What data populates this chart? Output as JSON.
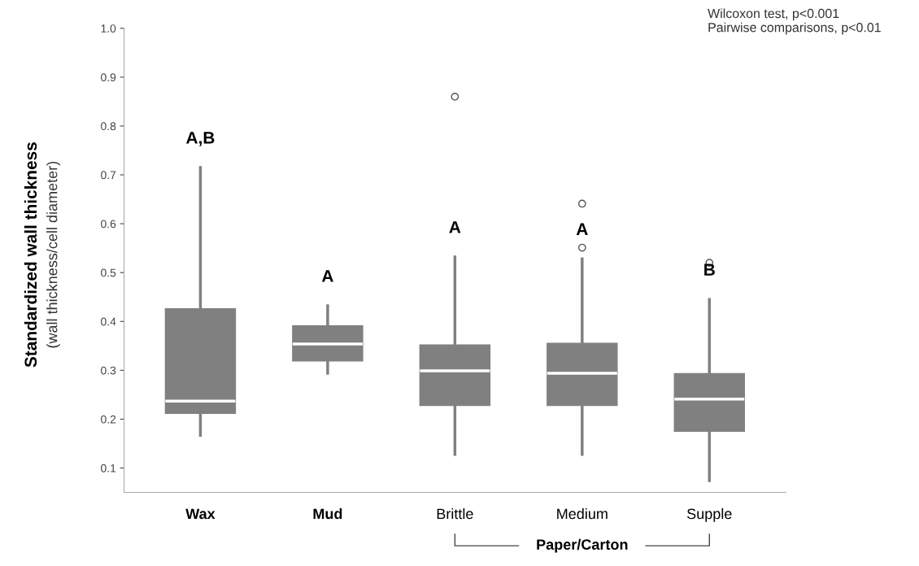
{
  "chart_data": {
    "type": "box",
    "ylabel": "Standardized wall thickness\n(wall thickness/cell diameter)",
    "categories": [
      "Wax",
      "Mud",
      "Brittle",
      "Medium",
      "Supple"
    ],
    "boxes": [
      {
        "low": 0.167,
        "q1": 0.212,
        "median": 0.237,
        "q3": 0.426,
        "high": 0.715
      },
      {
        "low": 0.294,
        "q1": 0.319,
        "median": 0.354,
        "q3": 0.391,
        "high": 0.432
      },
      {
        "low": 0.128,
        "q1": 0.228,
        "median": 0.299,
        "q3": 0.352,
        "high": 0.532,
        "outliers": [
          0.86
        ]
      },
      {
        "low": 0.128,
        "q1": 0.228,
        "median": 0.294,
        "q3": 0.355,
        "high": 0.528,
        "outliers": [
          0.641,
          0.551
        ]
      },
      {
        "low": 0.074,
        "q1": 0.175,
        "median": 0.241,
        "q3": 0.293,
        "high": 0.445,
        "outliers": [
          0.52
        ]
      }
    ],
    "color": "#808080",
    "ylim": [
      0.05,
      1.0
    ],
    "yticks": [
      {
        "value": 0.1,
        "label": "0.1"
      },
      {
        "value": 0.2,
        "label": "0.2"
      },
      {
        "value": 0.3,
        "label": "0.3"
      },
      {
        "value": 0.4,
        "label": "0.4"
      },
      {
        "value": 0.5,
        "label": "0.5"
      },
      {
        "value": 0.6,
        "label": "0.6"
      },
      {
        "value": 0.7,
        "label": "0.7"
      },
      {
        "value": 0.8,
        "label": "0.8"
      },
      {
        "value": 0.9,
        "label": "0.9"
      },
      {
        "value": 1.0,
        "label": "1.0"
      }
    ],
    "grid": false,
    "annotations": [
      "A,B",
      "A",
      "A",
      "A",
      "B",
      "Wilcoxon test, p<0.001\nPairwise comparisons, p<0.01",
      "Paper/Carton"
    ]
  }
}
